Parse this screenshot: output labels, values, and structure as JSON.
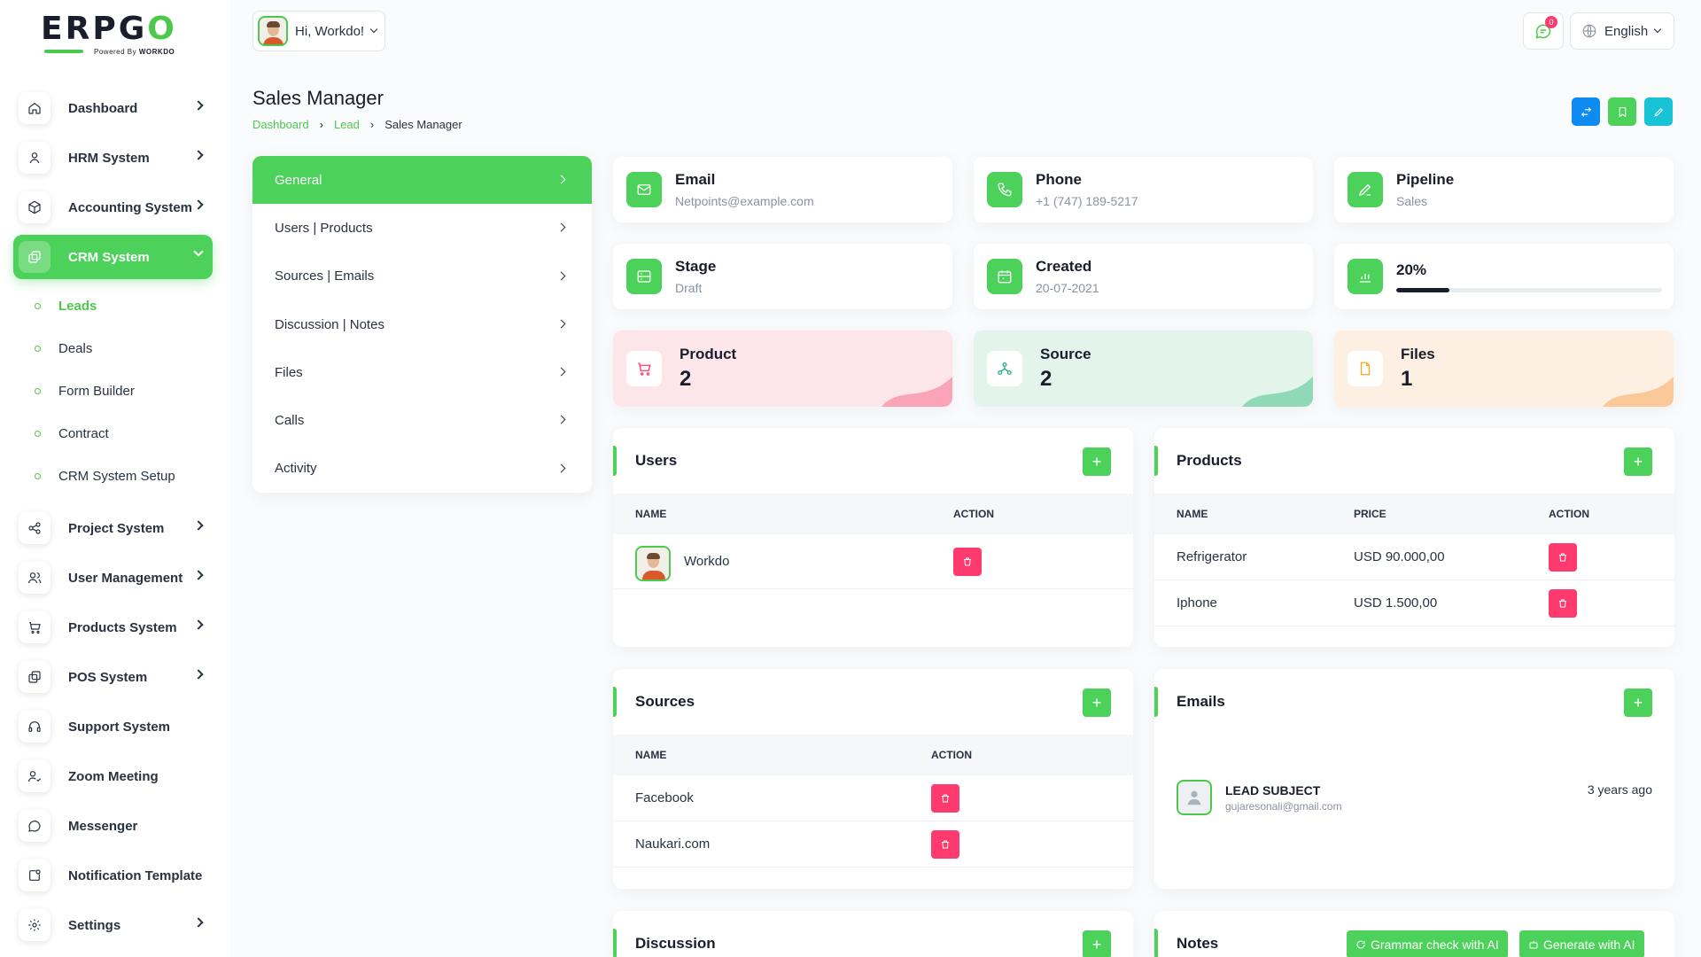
{
  "brand": {
    "logo_text": "ERPGO",
    "powered_by": "Powered By",
    "powered_brand": "WORKDO"
  },
  "sidebar": {
    "items": [
      {
        "label": "Dashboard",
        "icon": "home-icon",
        "chevron": true
      },
      {
        "label": "HRM System",
        "icon": "user-icon",
        "chevron": true
      },
      {
        "label": "Accounting System",
        "icon": "box-icon",
        "chevron": true
      },
      {
        "label": "CRM System",
        "icon": "layers-icon",
        "chevron": true,
        "active": true
      }
    ],
    "crm_subitems": [
      {
        "label": "Leads",
        "active": true
      },
      {
        "label": "Deals"
      },
      {
        "label": "Form Builder"
      },
      {
        "label": "Contract"
      },
      {
        "label": "CRM System Setup"
      }
    ],
    "items_after": [
      {
        "label": "Project System",
        "icon": "share-icon",
        "chevron": true
      },
      {
        "label": "User Management",
        "icon": "users-icon",
        "chevron": true
      },
      {
        "label": "Products System",
        "icon": "cart-icon",
        "chevron": true
      },
      {
        "label": "POS System",
        "icon": "layers-icon",
        "chevron": true
      },
      {
        "label": "Support System",
        "icon": "headphones-icon",
        "chevron": false
      },
      {
        "label": "Zoom Meeting",
        "icon": "user-check-icon",
        "chevron": false
      },
      {
        "label": "Messenger",
        "icon": "message-icon",
        "chevron": false
      },
      {
        "label": "Notification Template",
        "icon": "notification-icon",
        "chevron": false
      },
      {
        "label": "Settings",
        "icon": "gear-icon",
        "chevron": true
      }
    ]
  },
  "header": {
    "greeting": "Hi, Workdo!",
    "notification_count": "0",
    "language": "English"
  },
  "page": {
    "title": "Sales Manager",
    "breadcrumb": [
      "Dashboard",
      "Lead",
      "Sales Manager"
    ]
  },
  "tabs": [
    "General",
    "Users | Products",
    "Sources | Emails",
    "Discussion | Notes",
    "Files",
    "Calls",
    "Activity"
  ],
  "info": {
    "email": {
      "title": "Email",
      "value": "Netpoints@example.com"
    },
    "phone": {
      "title": "Phone",
      "value": "+1 (747) 189-5217"
    },
    "pipeline": {
      "title": "Pipeline",
      "value": "Sales"
    },
    "stage": {
      "title": "Stage",
      "value": "Draft"
    },
    "created": {
      "title": "Created",
      "value": "20-07-2021"
    },
    "progress": {
      "label": "20%",
      "fraction": 0.2
    }
  },
  "stats": {
    "product": {
      "title": "Product",
      "value": "2"
    },
    "source": {
      "title": "Source",
      "value": "2"
    },
    "files": {
      "title": "Files",
      "value": "1"
    }
  },
  "users_panel": {
    "title": "Users",
    "headers": [
      "NAME",
      "ACTION"
    ],
    "rows": [
      {
        "name": "Workdo"
      }
    ]
  },
  "products_panel": {
    "title": "Products",
    "headers": [
      "NAME",
      "PRICE",
      "ACTION"
    ],
    "rows": [
      {
        "name": "Refrigerator",
        "price": "USD 90.000,00"
      },
      {
        "name": "Iphone",
        "price": "USD 1.500,00"
      }
    ]
  },
  "sources_panel": {
    "title": "Sources",
    "headers": [
      "NAME",
      "ACTION"
    ],
    "rows": [
      {
        "name": "Facebook"
      },
      {
        "name": "Naukari.com"
      }
    ]
  },
  "emails_panel": {
    "title": "Emails",
    "items": [
      {
        "subject": "LEAD SUBJECT",
        "address": "gujaresonali@gmail.com",
        "time": "3 years ago"
      }
    ]
  },
  "discussion_panel": {
    "title": "Discussion"
  },
  "notes_panel": {
    "title": "Notes",
    "grammar_btn": "Grammar check with AI",
    "generate_btn": "Generate with AI"
  },
  "colors": {
    "accent": "#4cd15a",
    "danger": "#ff3a6e",
    "info_blue": "#0d8bf0",
    "info_cyan": "#17c3d4"
  }
}
